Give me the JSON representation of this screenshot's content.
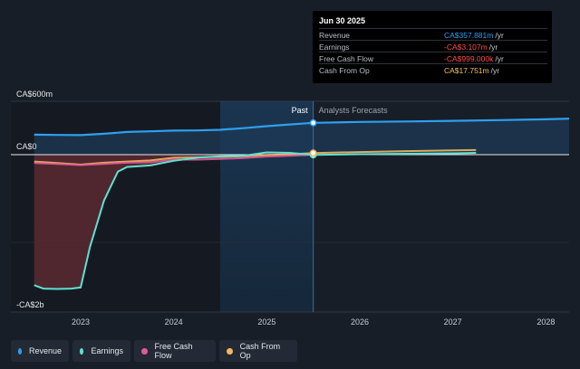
{
  "chart_data": {
    "type": "area",
    "title": "",
    "xlabel": "",
    "ylabel": "",
    "y_axis_labels": {
      "top": "CA$600m",
      "zero": "CA$0",
      "bottom": "-CA$2b"
    },
    "x_ticks": [
      "2023",
      "2024",
      "2025",
      "2026",
      "2027",
      "2028"
    ],
    "xlim": [
      2022.25,
      2028.25
    ],
    "ylim": [
      -2050,
      600
    ],
    "divider_x": 2025.5,
    "forecast_shade_start": 2024.5,
    "past_label": "Past",
    "forecast_label": "Analysts Forecasts",
    "legend_position": "bottom",
    "series": [
      {
        "name": "Revenue",
        "color": "#2f9ff0",
        "x": [
          2022.5,
          2022.75,
          2023.0,
          2023.25,
          2023.5,
          2023.75,
          2024.0,
          2024.25,
          2024.5,
          2024.75,
          2025.0,
          2025.25,
          2025.5,
          2026.0,
          2026.5,
          2027.0,
          2027.5,
          2028.0,
          2028.25
        ],
        "values": [
          225,
          222,
          220,
          235,
          255,
          262,
          270,
          273,
          280,
          298,
          320,
          340,
          358,
          368,
          373,
          380,
          388,
          398,
          405
        ]
      },
      {
        "name": "Earnings",
        "color": "#5fe0d2",
        "x": [
          2022.5,
          2022.6,
          2022.75,
          2022.9,
          2023.0,
          2023.1,
          2023.25,
          2023.4,
          2023.5,
          2023.75,
          2024.0,
          2024.25,
          2024.5,
          2024.75,
          2025.0,
          2025.25,
          2025.5,
          2026.0,
          2026.5,
          2027.0,
          2027.25
        ],
        "values": [
          -1700,
          -1745,
          -1750,
          -1745,
          -1730,
          -1200,
          -600,
          -220,
          -160,
          -140,
          -80,
          -40,
          -20,
          -15,
          25,
          20,
          -3,
          5,
          10,
          15,
          20
        ]
      },
      {
        "name": "Free Cash Flow",
        "color": "#e15a9a",
        "x": [
          2022.5,
          2022.75,
          2023.0,
          2023.25,
          2023.5,
          2023.75,
          2024.0,
          2024.25,
          2024.5,
          2024.75,
          2025.0,
          2025.25,
          2025.5
        ],
        "values": [
          -110,
          -120,
          -135,
          -120,
          -105,
          -100,
          -65,
          -65,
          -55,
          -45,
          -25,
          -15,
          -1
        ]
      },
      {
        "name": "Cash From Op",
        "color": "#f2b760",
        "x": [
          2022.5,
          2022.75,
          2023.0,
          2023.25,
          2023.5,
          2023.75,
          2024.0,
          2024.25,
          2024.5,
          2024.75,
          2025.0,
          2025.25,
          2025.5,
          2026.0,
          2026.5,
          2027.0,
          2027.25
        ],
        "values": [
          -90,
          -110,
          -130,
          -105,
          -90,
          -75,
          -40,
          -35,
          -30,
          -20,
          -5,
          5,
          18,
          30,
          40,
          48,
          52
        ]
      }
    ]
  },
  "tooltip": {
    "date": "Jun 30 2025",
    "rows": [
      {
        "label": "Revenue",
        "value": "CA$357.881m",
        "unit": "/yr",
        "color": "#2f9ff0"
      },
      {
        "label": "Earnings",
        "value": "-CA$3.107m",
        "unit": "/yr",
        "color": "#ff4d4d"
      },
      {
        "label": "Free Cash Flow",
        "value": "-CA$999.000k",
        "unit": "/yr",
        "color": "#ff4d4d"
      },
      {
        "label": "Cash From Op",
        "value": "CA$17.751m",
        "unit": "/yr",
        "color": "#f2c260"
      }
    ]
  },
  "legend": [
    {
      "label": "Revenue",
      "color": "#2f9ff0"
    },
    {
      "label": "Earnings",
      "color": "#5fe0d2"
    },
    {
      "label": "Free Cash Flow",
      "color": "#e15a9a"
    },
    {
      "label": "Cash From Op",
      "color": "#f2b760"
    }
  ]
}
